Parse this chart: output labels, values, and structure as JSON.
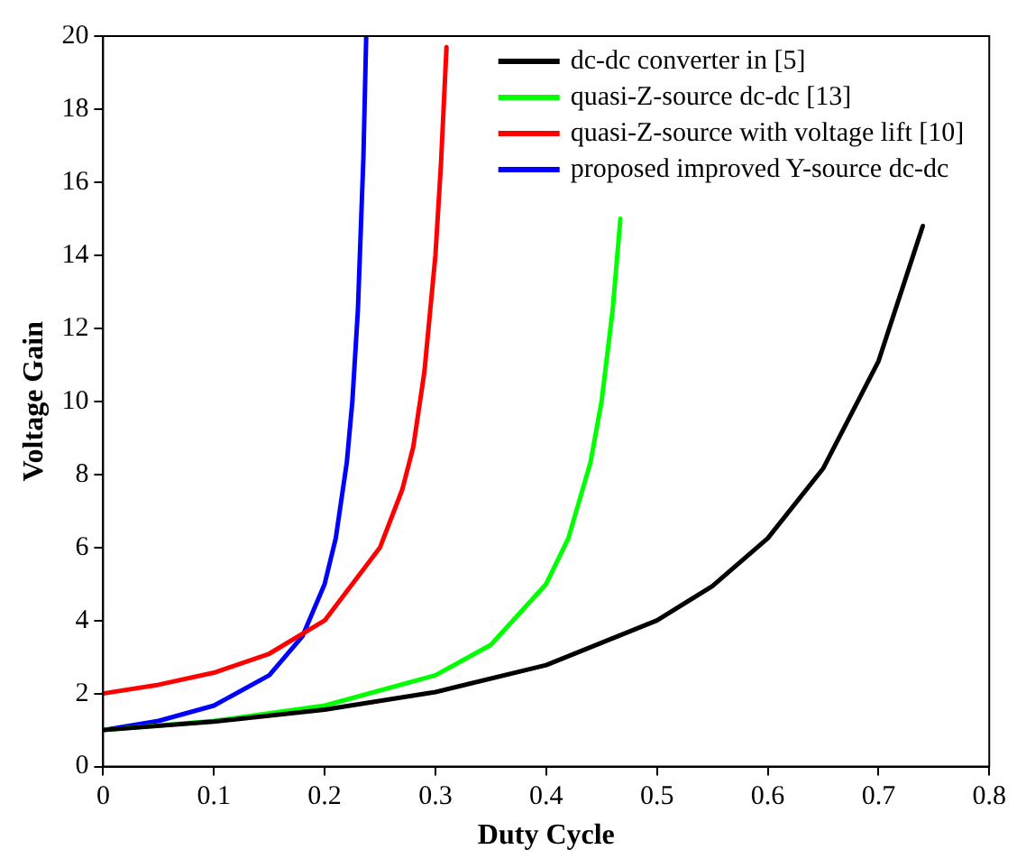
{
  "chart_data": {
    "type": "line",
    "xlabel": "Duty Cycle",
    "ylabel": "Voltage Gain",
    "xlim": [
      0,
      0.8
    ],
    "xticks": [
      0,
      0.1,
      0.2,
      0.3,
      0.4,
      0.5,
      0.6,
      0.7,
      0.8
    ],
    "ylim": [
      0,
      20
    ],
    "yticks": [
      0,
      2,
      4,
      6,
      8,
      10,
      12,
      14,
      16,
      18,
      20
    ],
    "grid": false,
    "legend": "top right",
    "marker": "none",
    "line_style": "solid",
    "series": [
      {
        "name": "dc-dc converter in [5]",
        "color": "#000000",
        "x": [
          0,
          0.1,
          0.2,
          0.3,
          0.4,
          0.5,
          0.55,
          0.6,
          0.65,
          0.7,
          0.74
        ],
        "values": [
          1,
          1.23,
          1.56,
          2.04,
          2.78,
          4,
          4.94,
          6.25,
          8.16,
          11.1,
          14.8
        ]
      },
      {
        "name": "quasi-Z-source dc-dc [13]",
        "color": "#00ff00",
        "x": [
          0,
          0.1,
          0.2,
          0.3,
          0.35,
          0.4,
          0.42,
          0.44,
          0.45,
          0.46,
          0.467
        ],
        "values": [
          1,
          1.25,
          1.67,
          2.5,
          3.33,
          5,
          6.25,
          8.33,
          10,
          12.5,
          15
        ]
      },
      {
        "name": "quasi-Z-source with voltage lift [10]",
        "color": "#ff0000",
        "x": [
          0,
          0.05,
          0.1,
          0.15,
          0.2,
          0.25,
          0.27,
          0.28,
          0.29,
          0.3,
          0.305,
          0.31
        ],
        "values": [
          2,
          2.24,
          2.57,
          3.09,
          4,
          6,
          7.58,
          8.75,
          10.8,
          14,
          16.5,
          19.7
        ]
      },
      {
        "name": "proposed improved Y-source dc-dc",
        "color": "#0000ff",
        "x": [
          0,
          0.05,
          0.1,
          0.15,
          0.18,
          0.2,
          0.21,
          0.22,
          0.225,
          0.23,
          0.235,
          0.2375
        ],
        "values": [
          1,
          1.25,
          1.67,
          2.5,
          3.57,
          5,
          6.25,
          8.33,
          10,
          12.5,
          16.7,
          20
        ]
      }
    ]
  }
}
